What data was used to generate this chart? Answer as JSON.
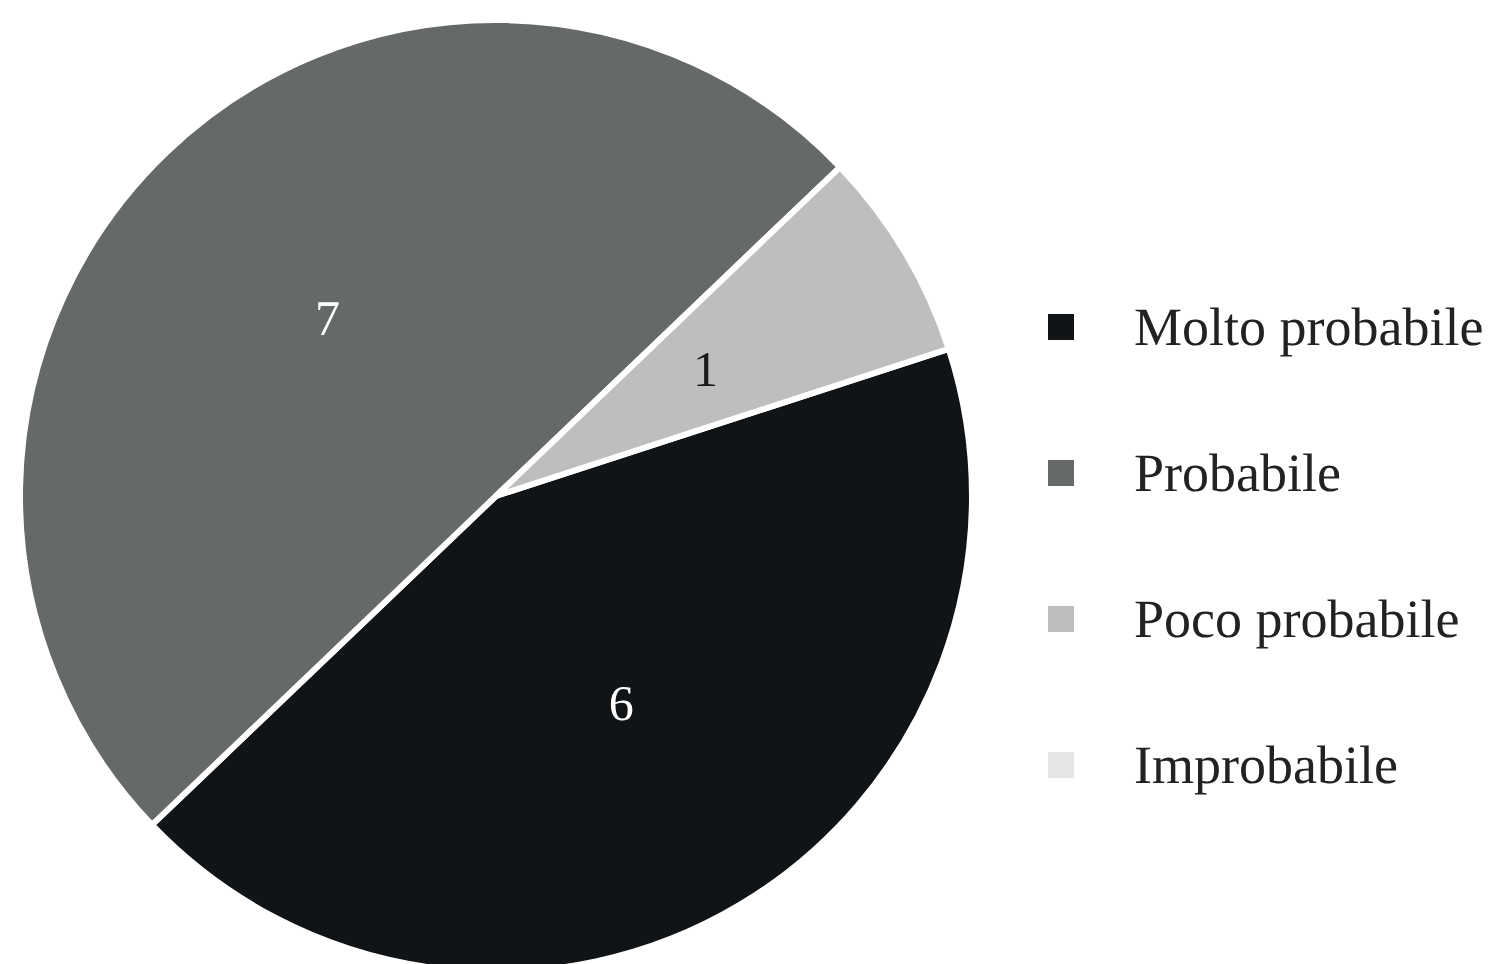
{
  "chart_data": {
    "type": "pie",
    "categories": [
      "Molto probabile",
      "Probabile",
      "Poco probabile",
      "Improbabile"
    ],
    "values": [
      6,
      7,
      1,
      0
    ],
    "colors": [
      "#111416",
      "#666969",
      "#bdbebf",
      "#e4e5e5"
    ],
    "value_labels": [
      "6",
      "7",
      "1",
      null
    ],
    "legend": "right"
  }
}
